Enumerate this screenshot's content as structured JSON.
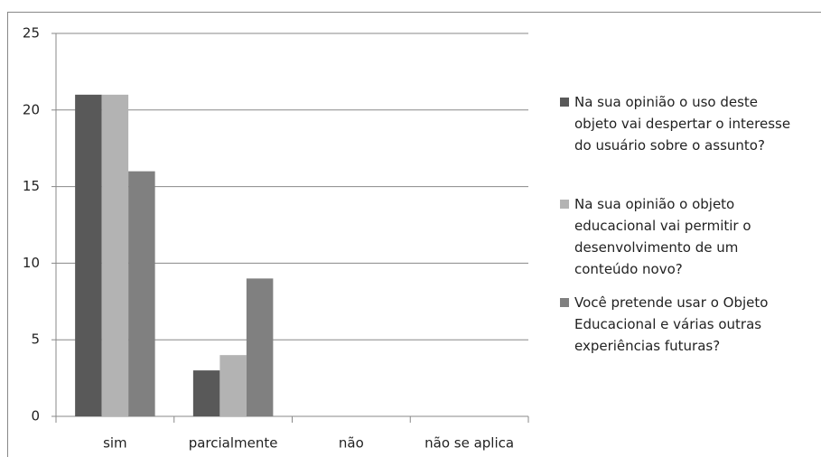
{
  "chart_data": {
    "type": "bar",
    "categories": [
      "sim",
      "parcialmente",
      "não",
      "não se aplica"
    ],
    "series": [
      {
        "name": "Na sua opinião o uso deste objeto vai despertar o interesse do usuário sobre o assunto?",
        "color": "#595959",
        "values": [
          21,
          3,
          0,
          0
        ]
      },
      {
        "name": "Na sua opinião o objeto educacional vai permitir o desenvolvimento de um conteúdo novo?",
        "color": "#b3b3b3",
        "values": [
          21,
          4,
          0,
          0
        ]
      },
      {
        "name": "Você pretende usar o Objeto Educacional e várias outras experiências futuras?",
        "color": "#808080",
        "values": [
          16,
          9,
          0,
          0
        ]
      }
    ],
    "ylim": [
      0,
      25
    ],
    "yticks": [
      0,
      5,
      10,
      15,
      20,
      25
    ],
    "grid": true,
    "legend": "right"
  }
}
